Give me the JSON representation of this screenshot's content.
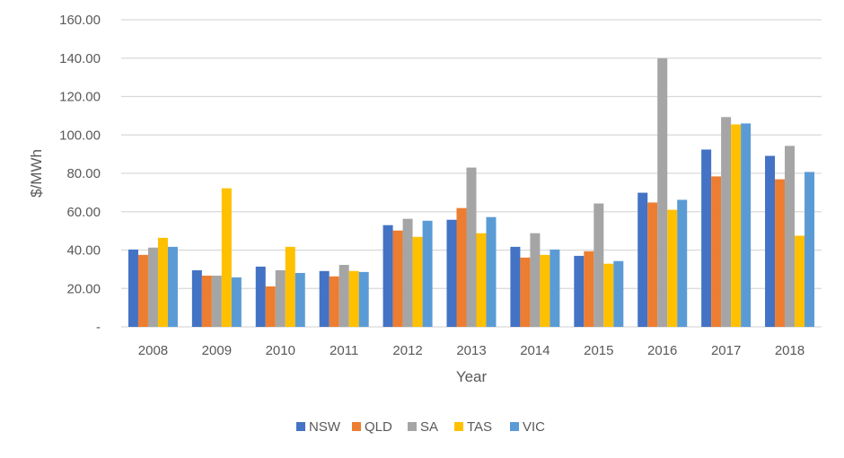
{
  "chart_data": {
    "type": "bar",
    "title": "",
    "xlabel": "Year",
    "ylabel": "$/MWh",
    "ylim": [
      0,
      160
    ],
    "yticks": [
      0,
      20,
      40,
      60,
      80,
      100,
      120,
      140,
      160
    ],
    "ytick_labels": [
      "-",
      "20.00",
      "40.00",
      "60.00",
      "80.00",
      "100.00",
      "120.00",
      "140.00",
      "160.00"
    ],
    "grid": true,
    "legend_position": "bottom",
    "categories": [
      "2008",
      "2009",
      "2010",
      "2011",
      "2012",
      "2013",
      "2014",
      "2015",
      "2016",
      "2017",
      "2018"
    ],
    "series": [
      {
        "name": "NSW",
        "color": "#4472C4",
        "values": [
          40.3,
          29.5,
          31.4,
          29.1,
          53.0,
          55.8,
          41.7,
          37.0,
          69.9,
          92.4,
          89.1
        ]
      },
      {
        "name": "QLD",
        "color": "#ED7D31",
        "values": [
          37.5,
          26.7,
          21.1,
          26.3,
          50.2,
          61.9,
          36.1,
          39.4,
          64.8,
          78.4,
          76.9
        ]
      },
      {
        "name": "SA",
        "color": "#A5A5A5",
        "values": [
          41.3,
          26.7,
          29.5,
          32.3,
          56.3,
          83.0,
          48.8,
          64.3,
          139.9,
          109.3,
          94.3
        ]
      },
      {
        "name": "TAS",
        "color": "#FFC000",
        "values": [
          46.4,
          72.2,
          41.7,
          29.1,
          46.9,
          48.8,
          37.5,
          32.9,
          61.0,
          105.5,
          47.5
        ]
      },
      {
        "name": "VIC",
        "color": "#5B9BD5",
        "values": [
          41.7,
          25.8,
          28.1,
          28.6,
          55.3,
          57.2,
          40.3,
          34.3,
          66.2,
          106.0,
          80.7
        ]
      }
    ]
  }
}
